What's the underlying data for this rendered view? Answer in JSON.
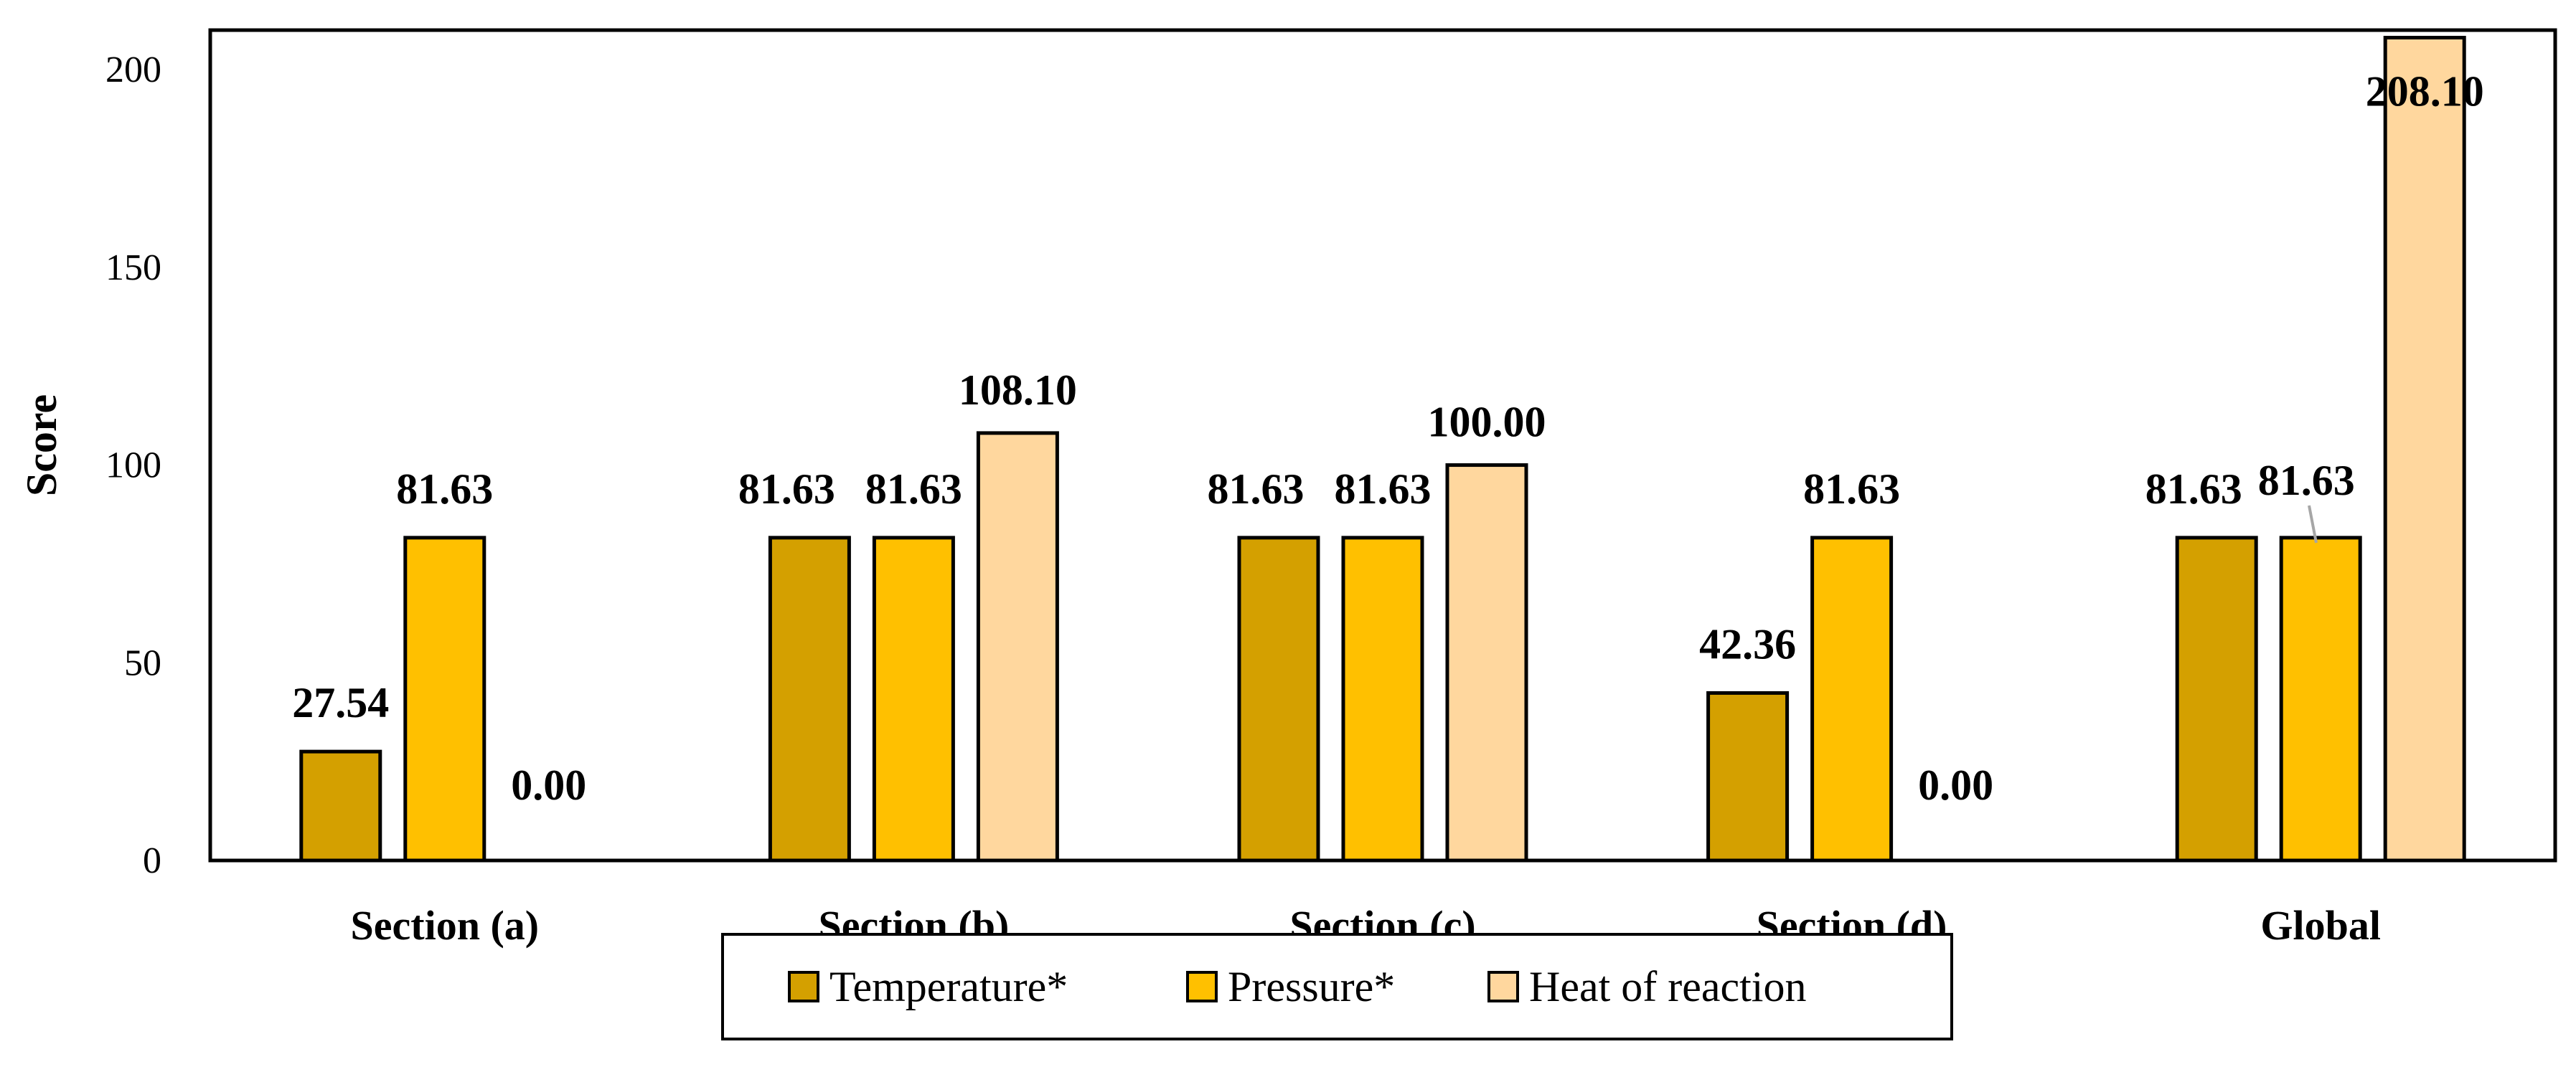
{
  "chart_data": {
    "type": "bar",
    "title": "",
    "xlabel": "",
    "ylabel": "Score",
    "ylim": [
      0,
      210
    ],
    "yticks": [
      0,
      50,
      100,
      150,
      200
    ],
    "categories": [
      "Section (a)",
      "Section (b)",
      "Section (c)",
      "Section (d)",
      "Global"
    ],
    "series": [
      {
        "name": "Temperature*",
        "color": "#D4A000",
        "values": [
          27.54,
          81.63,
          81.63,
          42.36,
          81.63
        ],
        "labels": [
          "27.54",
          "81.63",
          "81.63",
          "42.36",
          "81.63"
        ]
      },
      {
        "name": "Pressure*",
        "color": "#FFC000",
        "values": [
          81.63,
          81.63,
          81.63,
          81.63,
          81.63
        ],
        "labels": [
          "81.63",
          "81.63",
          "81.63",
          "81.63",
          "81.63"
        ]
      },
      {
        "name": "Heat of reaction",
        "color": "#FFD79E",
        "values": [
          0.0,
          108.1,
          100.0,
          0.0,
          208.1
        ],
        "labels": [
          "0.00",
          "108.10",
          "100.00",
          "0.00",
          "208.10"
        ]
      }
    ],
    "legend_position": "bottom-center",
    "grid": false
  }
}
